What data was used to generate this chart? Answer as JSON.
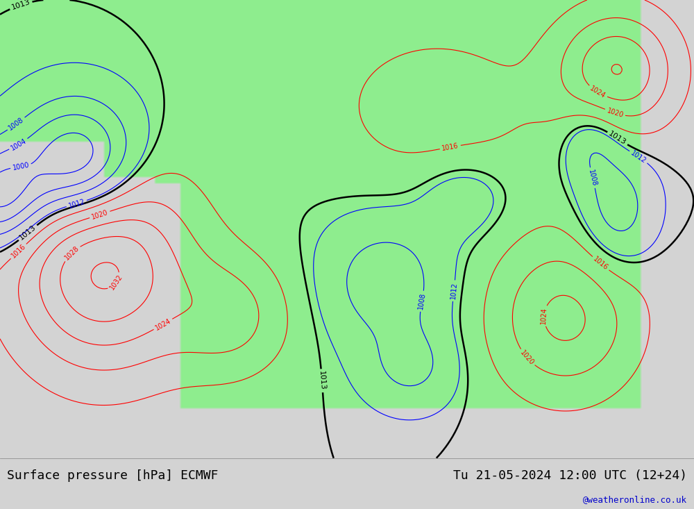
{
  "title_left": "Surface pressure [hPa] ECMWF",
  "title_right": "Tu 21-05-2024 12:00 UTC (12+24)",
  "watermark": "@weatheronline.co.uk",
  "background_color": "#d3d3d3",
  "land_color_rgba": [
    0.56,
    0.93,
    0.56,
    1.0
  ],
  "ocean_color_rgba": [
    0.83,
    0.83,
    0.83,
    1.0
  ],
  "contour_interval": 4,
  "pressure_min": 984,
  "pressure_max": 1048,
  "bold_contour": 1013,
  "fig_width": 10.0,
  "fig_height": 7.33,
  "dpi": 100,
  "bottom_bar_color": "#e8e8e8",
  "font_size_title": 13,
  "font_size_watermark": 9,
  "lon_min": -175,
  "lon_max": -40,
  "lat_min": 15,
  "lat_max": 80,
  "grid_lon": 300,
  "grid_lat": 220,
  "gaussians": [
    {
      "lon": -155,
      "lat": 42,
      "amp": 20,
      "sx": 12,
      "sy": 10,
      "sign": 1
    },
    {
      "lon": -160,
      "lat": 57,
      "amp": 20,
      "sx": 8,
      "sy": 6,
      "sign": -1
    },
    {
      "lon": -175,
      "lat": 52,
      "amp": 15,
      "sx": 6,
      "sy": 5,
      "sign": -1
    },
    {
      "lon": -130,
      "lat": 35,
      "amp": 8,
      "sx": 8,
      "sy": 6,
      "sign": 1
    },
    {
      "lon": -100,
      "lat": 40,
      "amp": 8,
      "sx": 8,
      "sy": 6,
      "sign": -1
    },
    {
      "lon": -65,
      "lat": 35,
      "amp": 12,
      "sx": 10,
      "sy": 8,
      "sign": 1
    },
    {
      "lon": -55,
      "lat": 50,
      "amp": 8,
      "sx": 5,
      "sy": 6,
      "sign": -1
    },
    {
      "lon": -60,
      "lat": 60,
      "amp": 6,
      "sx": 4,
      "sy": 4,
      "sign": -1
    },
    {
      "lon": -55,
      "lat": 70,
      "amp": 15,
      "sx": 8,
      "sy": 6,
      "sign": 1
    },
    {
      "lon": -90,
      "lat": 65,
      "amp": 5,
      "sx": 15,
      "sy": 8,
      "sign": 1
    },
    {
      "lon": -85,
      "lat": 52,
      "amp": 4,
      "sx": 6,
      "sy": 4,
      "sign": -1
    },
    {
      "lon": -95,
      "lat": 28,
      "amp": 6,
      "sx": 6,
      "sy": 4,
      "sign": -1
    }
  ]
}
